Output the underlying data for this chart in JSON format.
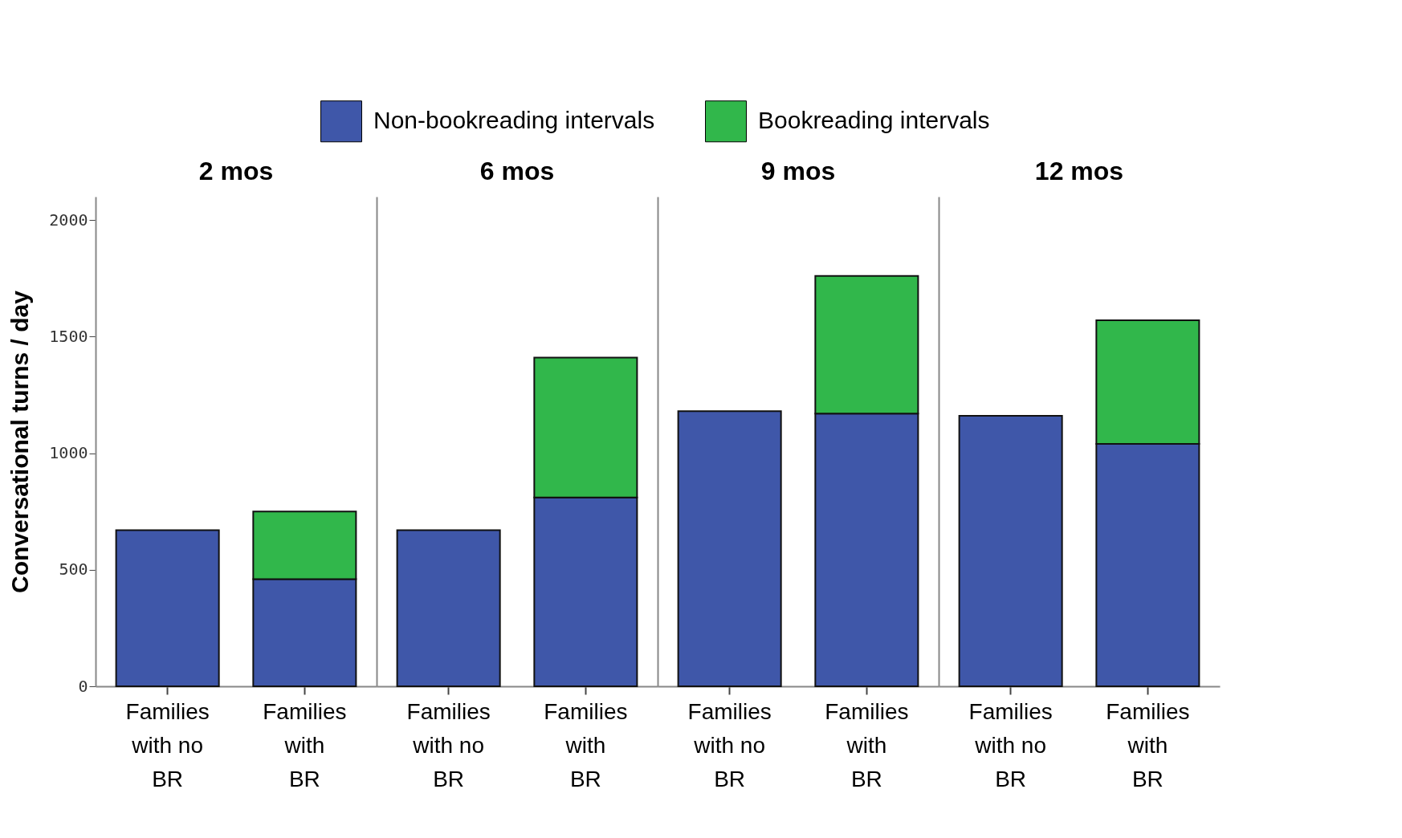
{
  "chart_data": [
    {
      "type": "bar",
      "title": "2 mos",
      "ylabel": "Conversational turns / day",
      "categories": [
        "Families with no BR",
        "Families with BR"
      ],
      "stacked": true,
      "legend": "top",
      "ylim": [
        0,
        2100
      ],
      "yticks": [
        0,
        500,
        1000,
        1500,
        2000
      ],
      "series": [
        {
          "name": "Non-bookreading intervals",
          "color": "#3f57a9",
          "values": [
            670,
            460
          ]
        },
        {
          "name": "Bookreading intervals",
          "color": "#31b74b",
          "values": [
            null,
            290
          ]
        }
      ]
    },
    {
      "type": "bar",
      "title": "6 mos",
      "categories": [
        "Families with no BR",
        "Families with BR"
      ],
      "stacked": true,
      "tick_labels": "x",
      "ylim": [
        0,
        2100
      ],
      "yticks": [
        0,
        500,
        1000,
        1500,
        2000
      ],
      "series": [
        {
          "color": "#3f57a9",
          "values": [
            670,
            810
          ]
        },
        {
          "color": "#31b74b",
          "values": [
            null,
            600
          ]
        }
      ]
    },
    {
      "type": "bar",
      "title": "9 mos",
      "categories": [
        "Families with no BR",
        "Families with BR"
      ],
      "stacked": true,
      "tick_labels": "x",
      "ylim": [
        0,
        2100
      ],
      "yticks": [
        0,
        500,
        1000,
        1500,
        2000
      ],
      "series": [
        {
          "color": "#3f57a9",
          "values": [
            1180,
            1170
          ]
        },
        {
          "color": "#31b74b",
          "values": [
            null,
            590
          ]
        }
      ]
    },
    {
      "type": "bar",
      "title": "12 mos",
      "categories": [
        "Families with no BR",
        "Families with BR"
      ],
      "stacked": true,
      "tick_labels": "x",
      "ylim": [
        0,
        2100
      ],
      "yticks": [
        0,
        500,
        1000,
        1500,
        2000
      ],
      "series": [
        {
          "color": "#3f57a9",
          "values": [
            1160,
            1040
          ]
        },
        {
          "color": "#31b74b",
          "values": [
            null,
            530
          ]
        }
      ]
    }
  ]
}
